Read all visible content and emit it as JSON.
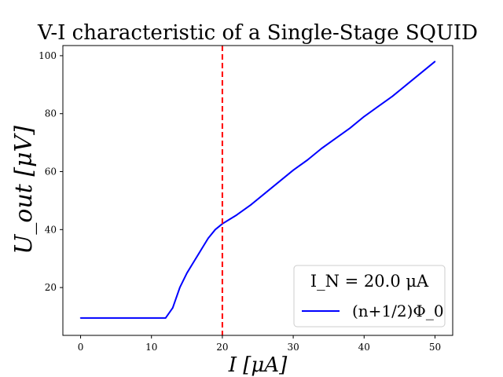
{
  "chart_data": {
    "type": "line",
    "title": "V-I characteristic of a Single-Stage SQUID",
    "xlabel": "I [μA]",
    "ylabel": "U_out [μV]",
    "xlim": [
      -2.5,
      52.5
    ],
    "ylim": [
      3.5,
      103.5
    ],
    "xticks": [
      0,
      10,
      20,
      30,
      40,
      50
    ],
    "yticks": [
      20,
      40,
      60,
      80,
      100
    ],
    "grid": false,
    "legend": {
      "title": "I_N = 20.0 μA",
      "placement": "lower-right",
      "entries": [
        {
          "label": "(n+1/2)Φ_0",
          "color": "#0000ff"
        }
      ]
    },
    "vline": {
      "x": 20,
      "color": "#ff0000",
      "style": "dashed"
    },
    "series": [
      {
        "label": "(n+1/2)Φ_0",
        "color": "#0000ff",
        "x": [
          0,
          12,
          13,
          14,
          15,
          16,
          17,
          18,
          19,
          20,
          21,
          22,
          24,
          26,
          28,
          30,
          32,
          34,
          36,
          38,
          40,
          42,
          44,
          46,
          48,
          50
        ],
        "y": [
          9.5,
          9.5,
          13,
          20,
          25,
          29,
          33,
          37,
          40,
          42,
          43.5,
          45,
          48.5,
          52.5,
          56.5,
          60.5,
          64,
          68,
          71.5,
          75,
          79,
          82.5,
          86,
          90,
          94,
          98
        ]
      }
    ]
  }
}
